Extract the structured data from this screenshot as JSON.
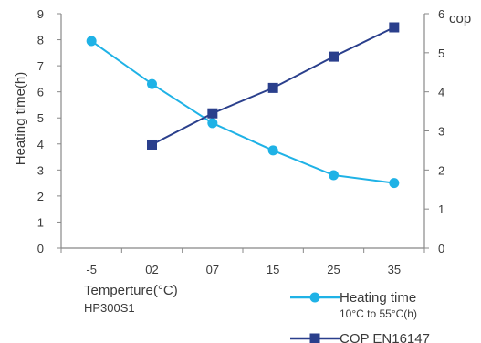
{
  "chart_data": {
    "type": "line",
    "categories": [
      "-5",
      "02",
      "07",
      "15",
      "25",
      "35"
    ],
    "xlabel": "Temperture(°C)",
    "caption": "HP300S1",
    "ylabel_left": "Heating time(h)",
    "ylabel_right": "cop",
    "ylim_left": [
      0,
      9
    ],
    "ylim_right": [
      0,
      6
    ],
    "yticks_left": [
      "0",
      "1",
      "2",
      "3",
      "4",
      "5",
      "6",
      "7",
      "8",
      "9"
    ],
    "yticks_right": [
      "0",
      "1",
      "2",
      "3",
      "4",
      "5",
      "6"
    ],
    "grid": false,
    "legend_position": "bottom-right",
    "series": [
      {
        "name": "Heating time",
        "name_sub": "10°C to 55°C(h)",
        "axis": "left",
        "marker": "circle",
        "color": "#1fb2e6",
        "values": [
          7.95,
          6.3,
          4.8,
          3.75,
          2.8,
          2.5
        ]
      },
      {
        "name": "COP EN16147",
        "axis": "right",
        "marker": "square",
        "color": "#2a3f8c",
        "values": [
          null,
          2.65,
          3.45,
          4.1,
          4.9,
          5.65
        ]
      }
    ]
  }
}
